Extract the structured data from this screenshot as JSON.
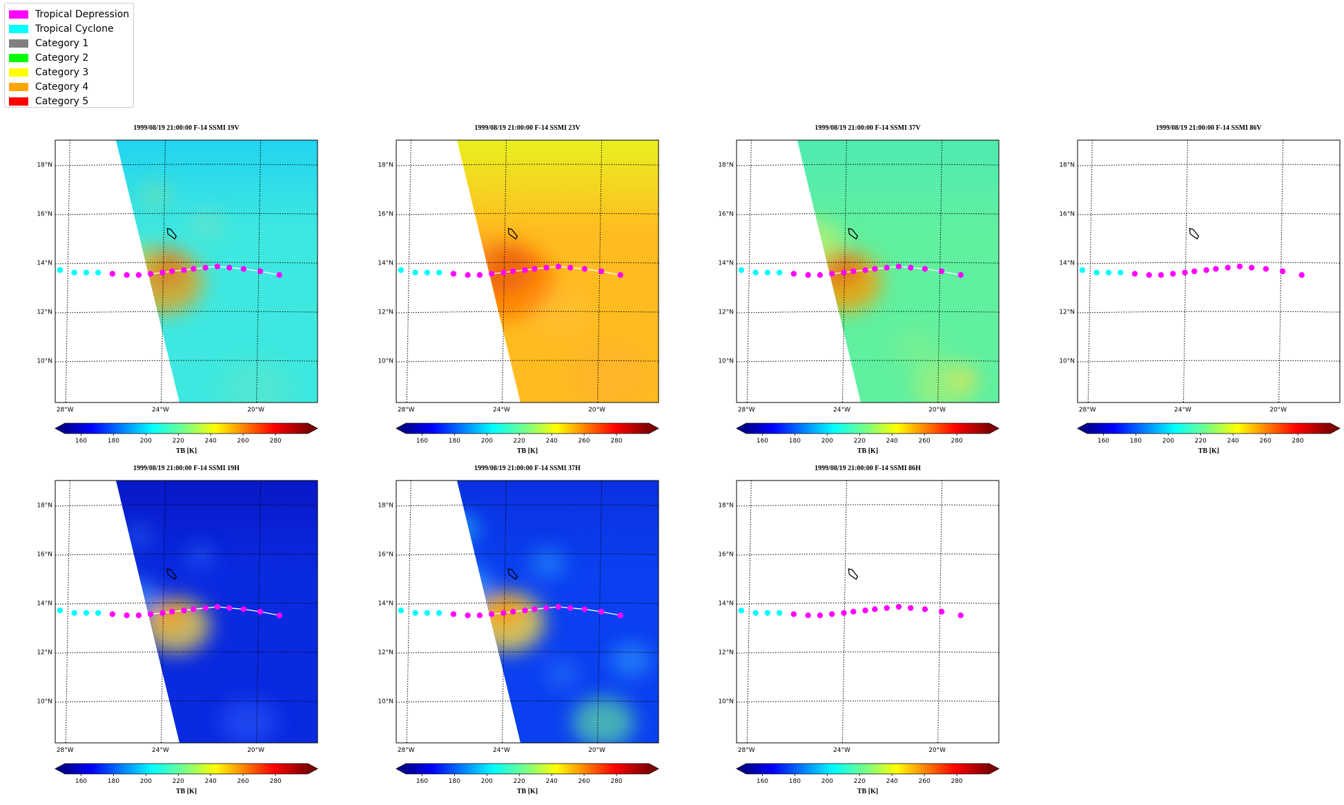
{
  "legend": {
    "items": [
      {
        "label": "Tropical Depression",
        "color": "#ff00ff"
      },
      {
        "label": "Tropical Cyclone",
        "color": "#00ffff"
      },
      {
        "label": "Category 1",
        "color": "#808080"
      },
      {
        "label": "Category 2",
        "color": "#00ff00"
      },
      {
        "label": "Category 3",
        "color": "#ffff00"
      },
      {
        "label": "Category 4",
        "color": "#ffa500"
      },
      {
        "label": "Category 5",
        "color": "#ff0000"
      }
    ]
  },
  "panels": [
    {
      "title": "1999/08/19 21:00:00  F-14 SSMI 19V",
      "has_data": true,
      "style": "v19",
      "track_line": true
    },
    {
      "title": "1999/08/19 21:00:00  F-14 SSMI 23V",
      "has_data": true,
      "style": "v23",
      "track_line": true
    },
    {
      "title": "1999/08/19 21:00:00  F-14 SSMI 37V",
      "has_data": true,
      "style": "v37",
      "track_line": true
    },
    {
      "title": "1999/08/19 21:00:00  F-14 SSMI 86V",
      "has_data": false,
      "style": "none",
      "track_line": false
    },
    {
      "title": "1999/08/19 21:00:00  F-14 SSMI 19H",
      "has_data": true,
      "style": "h19",
      "track_line": true
    },
    {
      "title": "1999/08/19 21:00:00  F-14 SSMI 37H",
      "has_data": true,
      "style": "h37",
      "track_line": true
    },
    {
      "title": "1999/08/19 21:00:00  F-14 SSMI 86H",
      "has_data": false,
      "style": "none",
      "track_line": false
    }
  ],
  "map": {
    "lat_labels": [
      "18°N",
      "16°N",
      "14°N",
      "12°N",
      "10°N"
    ],
    "lon_labels": [
      "28°W",
      "24°W",
      "20°W"
    ]
  },
  "colorbar": {
    "ticks": [
      "160",
      "180",
      "200",
      "220",
      "240",
      "260",
      "280"
    ],
    "label": "TB [K]",
    "range": [
      150,
      300
    ]
  },
  "track": {
    "lon": [
      -28.3,
      -27.7,
      -27.2,
      -26.7,
      -26.1,
      -25.5,
      -25.0,
      -24.5,
      -24.0,
      -23.6,
      -23.1,
      -22.7,
      -22.2,
      -21.7,
      -21.2,
      -20.6,
      -19.9,
      -19.1
    ],
    "lat": [
      13.7,
      13.6,
      13.6,
      13.6,
      13.55,
      13.5,
      13.5,
      13.55,
      13.6,
      13.65,
      13.7,
      13.75,
      13.8,
      13.85,
      13.8,
      13.75,
      13.65,
      13.5
    ],
    "category": [
      "TC",
      "TC",
      "TC",
      "TC",
      "TD",
      "TD",
      "TD",
      "TD",
      "TD",
      "TD",
      "TD",
      "TD",
      "TD",
      "TD",
      "TD",
      "TD",
      "TD",
      "TD"
    ]
  }
}
